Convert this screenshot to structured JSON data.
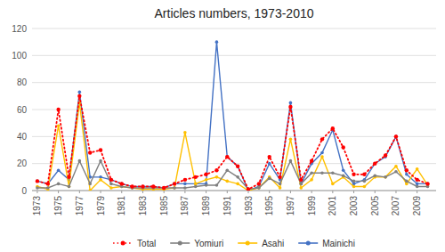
{
  "chart_data": {
    "type": "line",
    "title": "Articles numbers, 1973-2010",
    "x": [
      1973,
      1974,
      1975,
      1976,
      1977,
      1978,
      1979,
      1980,
      1981,
      1982,
      1983,
      1984,
      1985,
      1986,
      1987,
      1988,
      1989,
      1990,
      1991,
      1992,
      1993,
      1994,
      1995,
      1996,
      1997,
      1998,
      1999,
      2000,
      2001,
      2002,
      2003,
      2004,
      2005,
      2006,
      2007,
      2008,
      2009,
      2010
    ],
    "series": [
      {
        "name": "Total",
        "color": "#ff0000",
        "line_style": "dotted",
        "marker": "circle",
        "values": [
          7,
          5,
          60,
          10,
          70,
          28,
          30,
          8,
          5,
          3,
          3,
          3,
          2,
          5,
          8,
          10,
          12,
          15,
          25,
          18,
          1,
          5,
          25,
          10,
          62,
          8,
          22,
          38,
          46,
          32,
          12,
          12,
          20,
          26,
          40,
          15,
          8,
          5
        ]
      },
      {
        "name": "Yomiuri",
        "color": "#808080",
        "line_style": "solid",
        "marker": "circle",
        "values": [
          2,
          2,
          5,
          3,
          22,
          5,
          22,
          5,
          3,
          2,
          2,
          2,
          2,
          2,
          2,
          3,
          4,
          4,
          15,
          10,
          1,
          2,
          9,
          5,
          22,
          5,
          13,
          13,
          13,
          11,
          7,
          7,
          11,
          10,
          14,
          7,
          3,
          3
        ]
      },
      {
        "name": "Asahi",
        "color": "#ffc000",
        "line_style": "solid",
        "marker": "circle",
        "values": [
          3,
          1,
          48,
          3,
          65,
          0,
          8,
          2,
          3,
          2,
          1,
          1,
          1,
          2,
          43,
          5,
          8,
          10,
          7,
          5,
          0,
          2,
          10,
          2,
          38,
          2,
          8,
          25,
          5,
          10,
          3,
          3,
          10,
          10,
          18,
          5,
          16,
          4
        ]
      },
      {
        "name": "Mainichi",
        "color": "#4472c4",
        "line_style": "solid",
        "marker": "circle",
        "values": [
          7,
          5,
          15,
          8,
          73,
          10,
          10,
          8,
          5,
          3,
          3,
          3,
          2,
          5,
          5,
          5,
          5,
          110,
          25,
          18,
          0,
          3,
          20,
          8,
          65,
          5,
          20,
          28,
          45,
          15,
          5,
          8,
          20,
          25,
          40,
          12,
          5,
          5
        ]
      }
    ],
    "xlim": [
      1972.5,
      2010.8
    ],
    "xticks": [
      1973,
      1975,
      1977,
      1979,
      1981,
      1983,
      1985,
      1987,
      1989,
      1991,
      1993,
      1995,
      1997,
      1999,
      2001,
      2003,
      2005,
      2007,
      2009
    ],
    "ylim": [
      0,
      120
    ],
    "yticks": [
      0,
      20,
      40,
      60,
      80,
      100,
      120
    ],
    "grid": true,
    "legend": "bottom"
  }
}
